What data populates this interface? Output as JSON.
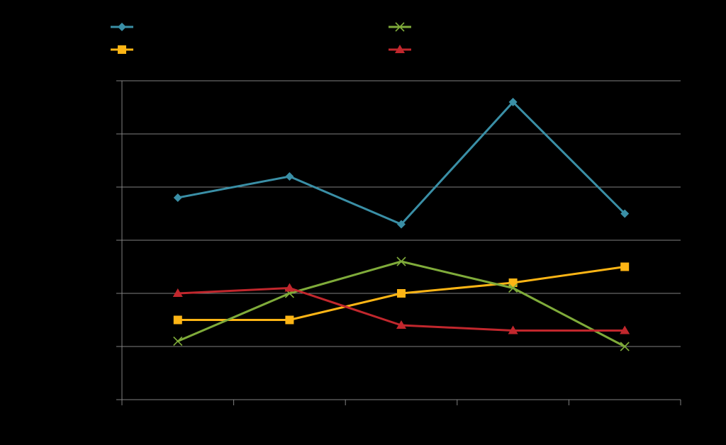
{
  "chart_data": {
    "type": "line",
    "title": "",
    "xlabel": "",
    "ylabel": "",
    "categories": [
      "",
      "",
      "",
      "",
      ""
    ],
    "ylim": [
      0,
      6
    ],
    "grid": true,
    "legend_position": "top",
    "series": [
      {
        "name": "",
        "color": "#3a8fa6",
        "marker": "diamond",
        "values": [
          3.8,
          4.2,
          3.3,
          5.6,
          3.5
        ]
      },
      {
        "name": "",
        "color": "#fdb515",
        "marker": "square",
        "values": [
          1.5,
          1.5,
          2.0,
          2.2,
          2.5
        ]
      },
      {
        "name": "",
        "color": "#7fab3a",
        "marker": "x",
        "values": [
          1.1,
          2.0,
          2.6,
          2.1,
          1.0
        ]
      },
      {
        "name": "",
        "color": "#c1272d",
        "marker": "triangle",
        "values": [
          2.0,
          2.1,
          1.4,
          1.3,
          1.3
        ]
      }
    ]
  },
  "colors": {
    "background": "#000000",
    "gridline": "#808080",
    "axis": "#808080"
  }
}
